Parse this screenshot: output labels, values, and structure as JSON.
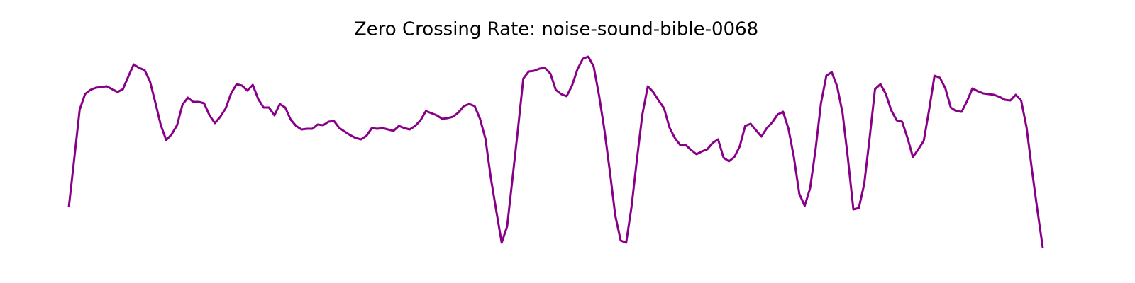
{
  "chart_data": {
    "type": "line",
    "title": "Zero Crossing Rate: noise-sound-bible-0068",
    "color": "#880088",
    "values": [
      0.067,
      0.135,
      0.205,
      0.227,
      0.233,
      0.236,
      0.237,
      0.238,
      0.234,
      0.23,
      0.234,
      0.252,
      0.269,
      0.264,
      0.261,
      0.245,
      0.215,
      0.183,
      0.162,
      0.17,
      0.183,
      0.212,
      0.222,
      0.216,
      0.216,
      0.214,
      0.197,
      0.186,
      0.195,
      0.207,
      0.228,
      0.241,
      0.239,
      0.232,
      0.24,
      0.22,
      0.208,
      0.208,
      0.197,
      0.213,
      0.208,
      0.191,
      0.182,
      0.177,
      0.178,
      0.178,
      0.184,
      0.183,
      0.188,
      0.189,
      0.179,
      0.174,
      0.169,
      0.165,
      0.163,
      0.168,
      0.179,
      0.178,
      0.179,
      0.177,
      0.175,
      0.182,
      0.179,
      0.177,
      0.182,
      0.19,
      0.203,
      0.2,
      0.197,
      0.192,
      0.193,
      0.195,
      0.201,
      0.21,
      0.213,
      0.21,
      0.192,
      0.164,
      0.108,
      0.062,
      0.017,
      0.04,
      0.108,
      0.177,
      0.249,
      0.259,
      0.26,
      0.263,
      0.264,
      0.256,
      0.233,
      0.227,
      0.224,
      0.239,
      0.262,
      0.277,
      0.28,
      0.266,
      0.225,
      0.176,
      0.117,
      0.055,
      0.02,
      0.017,
      0.068,
      0.135,
      0.198,
      0.238,
      0.23,
      0.218,
      0.207,
      0.18,
      0.165,
      0.155,
      0.155,
      0.148,
      0.142,
      0.146,
      0.149,
      0.158,
      0.163,
      0.137,
      0.132,
      0.138,
      0.153,
      0.182,
      0.185,
      0.176,
      0.167,
      0.179,
      0.187,
      0.198,
      0.202,
      0.178,
      0.138,
      0.086,
      0.069,
      0.094,
      0.148,
      0.214,
      0.253,
      0.258,
      0.238,
      0.2,
      0.135,
      0.064,
      0.066,
      0.1,
      0.165,
      0.234,
      0.241,
      0.227,
      0.204,
      0.19,
      0.188,
      0.165,
      0.138,
      0.149,
      0.161,
      0.205,
      0.253,
      0.25,
      0.235,
      0.208,
      0.203,
      0.202,
      0.217,
      0.235,
      0.231,
      0.228,
      0.227,
      0.226,
      0.223,
      0.219,
      0.218,
      0.226,
      0.218,
      0.18,
      0.12,
      0.063,
      0.01
    ]
  }
}
